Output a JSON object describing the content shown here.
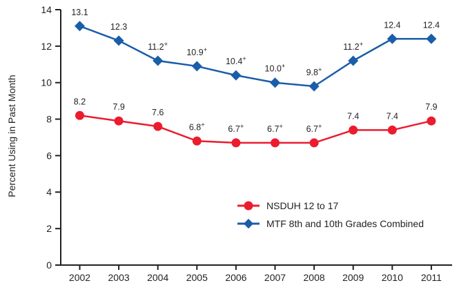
{
  "chart_data": {
    "type": "line",
    "title": "",
    "xlabel": "",
    "ylabel": "Percent Using in Past Month",
    "ylim": [
      0,
      14
    ],
    "ytick_step": 2,
    "grid": false,
    "legend_position": "inside-bottom-right",
    "categories": [
      "2002",
      "2003",
      "2004",
      "2005",
      "2006",
      "2007",
      "2008",
      "2009",
      "2010",
      "2011"
    ],
    "series": [
      {
        "name": "NSDUH 12 to 17",
        "marker": "circle",
        "color": "#EC1B2D",
        "values": [
          8.2,
          7.9,
          7.6,
          6.8,
          6.7,
          6.7,
          6.7,
          7.4,
          7.4,
          7.9
        ],
        "labels": [
          "8.2",
          "7.9",
          "7.6",
          "6.8+",
          "6.7+",
          "6.7+",
          "6.7+",
          "7.4",
          "7.4",
          "7.9"
        ]
      },
      {
        "name": "MTF 8th and 10th Grades Combined",
        "marker": "diamond",
        "color": "#1A5DA8",
        "values": [
          13.1,
          12.3,
          11.2,
          10.9,
          10.4,
          10.0,
          9.8,
          11.2,
          12.4,
          12.4
        ],
        "labels": [
          "13.1",
          "12.3",
          "11.2+",
          "10.9+",
          "10.4+",
          "10.0+",
          "9.8+",
          "11.2+",
          "12.4",
          "12.4"
        ]
      }
    ],
    "text_color": "#231F20"
  }
}
